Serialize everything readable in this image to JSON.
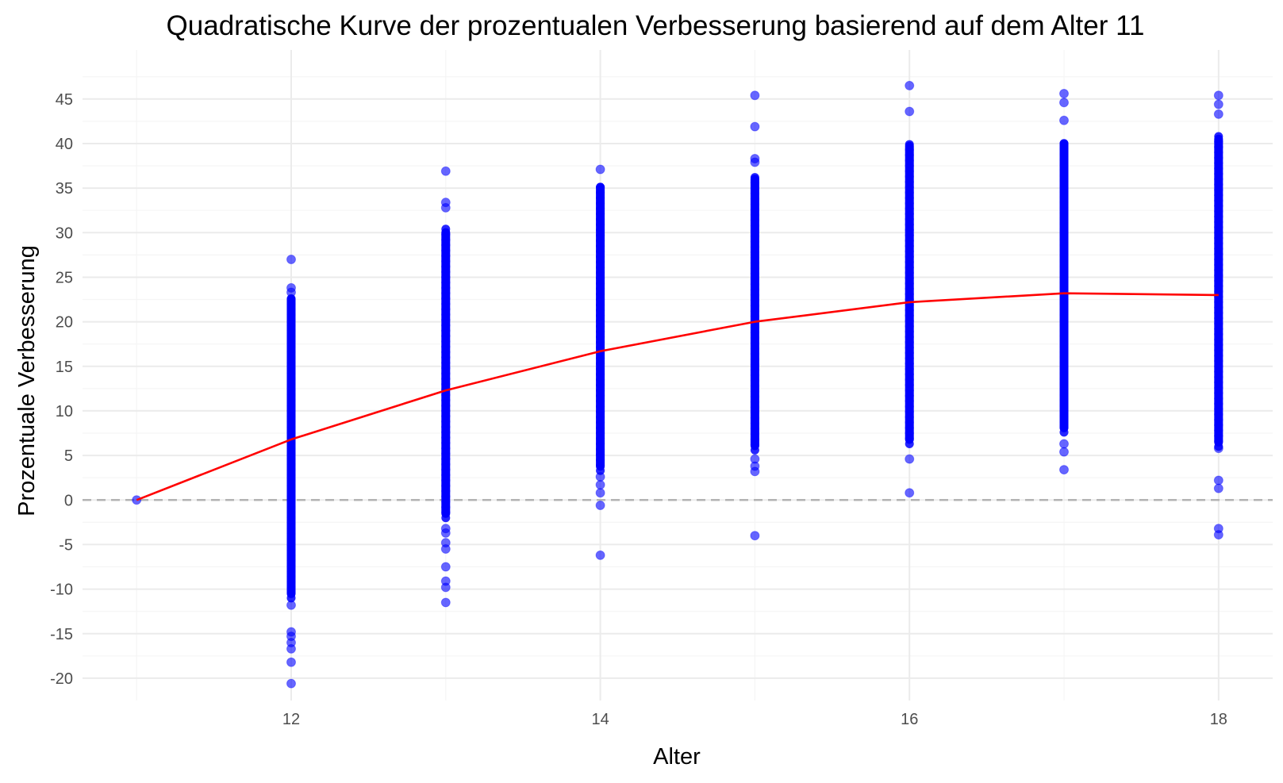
{
  "chart_data": {
    "type": "scatter",
    "title": "Quadratische Kurve der prozentualen Verbesserung basierend auf dem Alter 11",
    "xlabel": "Alter",
    "ylabel": "Prozentuale Verbesserung",
    "xlim": [
      10.65,
      18.35
    ],
    "ylim": [
      -22.5,
      50.5
    ],
    "x_ticks": [
      12,
      14,
      16,
      18
    ],
    "x_minor_ticks": [
      11,
      13,
      15,
      17
    ],
    "y_ticks": [
      -20,
      -15,
      -10,
      -5,
      0,
      5,
      10,
      15,
      20,
      25,
      30,
      35,
      40,
      45
    ],
    "grid": true,
    "legend": "none",
    "colors": {
      "points": "#0000ff",
      "curve": "#ff0000",
      "reference": "#b3b3b3",
      "grid_major": "#ebebeb",
      "grid_minor": "#f5f5f5"
    },
    "reference_line": {
      "y": 0,
      "style": "dashed"
    },
    "curve": {
      "name": "quadratic fit",
      "x": [
        11,
        12,
        13,
        14,
        15,
        16,
        17,
        18
      ],
      "y": [
        0,
        6.8,
        12.3,
        16.7,
        20.0,
        22.2,
        23.2,
        23.0
      ]
    },
    "series": [
      {
        "x": 11,
        "points": [
          0
        ]
      },
      {
        "x": 12,
        "range": [
          -11.0,
          23.0
        ],
        "points": [
          27.0,
          23.8,
          23.3,
          -11.8,
          -14.8,
          -15.3,
          -16.0,
          -16.7,
          -18.2,
          -20.6
        ]
      },
      {
        "x": 13,
        "range": [
          -2.0,
          30.5
        ],
        "points": [
          36.9,
          33.4,
          32.8,
          -3.2,
          -3.7,
          -4.8,
          -5.5,
          -7.5,
          -9.1,
          -9.8,
          -11.5
        ]
      },
      {
        "x": 14,
        "range": [
          3.3,
          35.6
        ],
        "points": [
          37.1,
          2.6,
          1.7,
          0.8,
          -0.6,
          -6.2
        ]
      },
      {
        "x": 15,
        "range": [
          5.6,
          36.5
        ],
        "points": [
          45.4,
          41.9,
          38.3,
          37.9,
          4.6,
          3.8,
          3.2,
          -4.0
        ]
      },
      {
        "x": 16,
        "range": [
          6.3,
          40.2
        ],
        "points": [
          46.5,
          43.6,
          4.6,
          0.8
        ]
      },
      {
        "x": 17,
        "range": [
          7.6,
          40.5
        ],
        "points": [
          45.6,
          44.6,
          42.6,
          6.3,
          5.4,
          3.4
        ]
      },
      {
        "x": 18,
        "range": [
          6.0,
          41.0
        ],
        "points": [
          45.4,
          44.4,
          43.3,
          5.8,
          2.2,
          1.3,
          -3.2,
          -3.9
        ]
      }
    ]
  }
}
